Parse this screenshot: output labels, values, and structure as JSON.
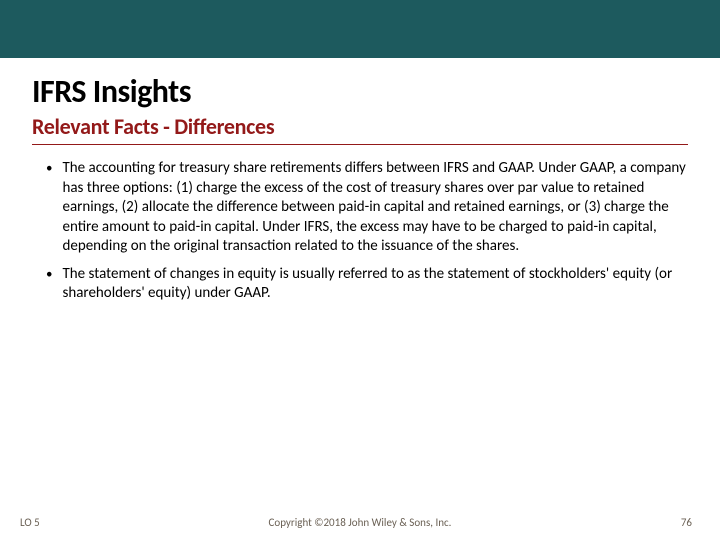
{
  "colors": {
    "top_bar": "#1d5a5e",
    "subtitle": "#931919",
    "footer_text": "#6b6155",
    "body_text": "#000000",
    "background": "#ffffff"
  },
  "typography": {
    "title_fontsize": 32,
    "subtitle_fontsize": 22,
    "body_fontsize": 15,
    "footer_fontsize": 11,
    "font_family": "Calibri"
  },
  "title": "IFRS Insights",
  "subtitle": "Relevant Facts - Differences",
  "bullets": [
    "The accounting for treasury share retirements differs between IFRS and GAAP. Under GAAP, a company has three options: (1) charge the excess of the cost of treasury shares over par value to retained earnings, (2) allocate the difference between paid-in capital and retained earnings, or (3) charge the entire amount to paid-in capital. Under IFRS, the excess may have to be charged to paid-in capital, depending on the original transaction related to the issuance of the shares.",
    "The statement of changes in equity is usually referred to as the statement of stockholders' equity (or shareholders' equity) under GAAP."
  ],
  "footer": {
    "lo": "LO 5",
    "copyright": "Copyright ©2018 John Wiley & Sons, Inc.",
    "page": "76"
  }
}
